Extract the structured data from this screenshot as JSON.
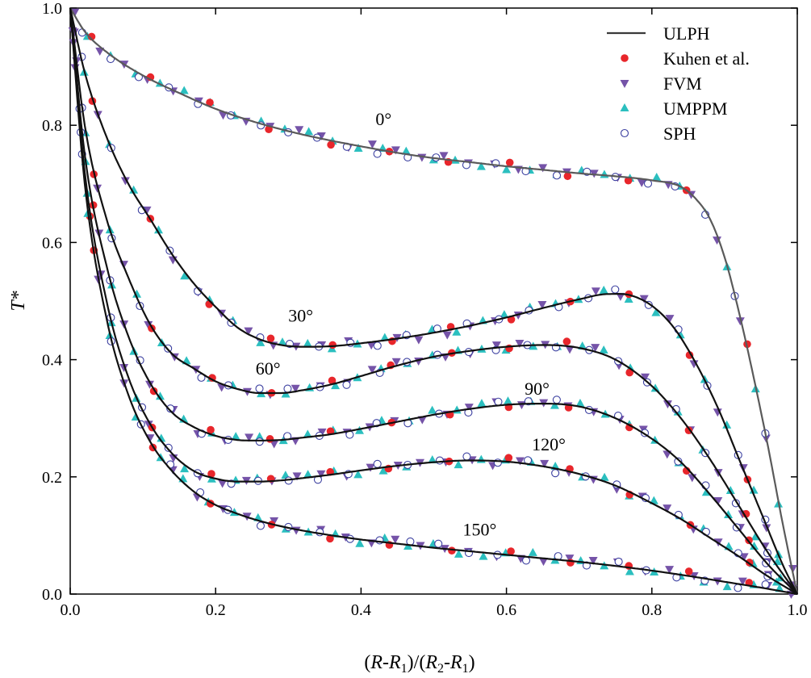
{
  "chart_data": {
    "type": "scatter",
    "title": "",
    "xlabel": "(R-R1)/(R2-R1)",
    "ylabel": "T*",
    "xlim": [
      0.0,
      1.0
    ],
    "ylim": [
      0.0,
      1.0
    ],
    "x_ticks": [
      "0.0",
      "0.2",
      "0.4",
      "0.6",
      "0.8",
      "1.0"
    ],
    "y_ticks": [
      "0.0",
      "0.2",
      "0.4",
      "0.6",
      "0.8",
      "1.0"
    ],
    "grid": false,
    "legend_position": "top-right",
    "colors": {
      "ulph": "#3a3a3a",
      "kuhen": "#e8262b",
      "fvm": "#7553a8",
      "umppm": "#2bbfbf",
      "sph": "#3b3fa0"
    },
    "legend": [
      {
        "key": "ulph",
        "label": "ULPH",
        "marker": "line"
      },
      {
        "key": "kuhen",
        "label": "Kuhen et al.",
        "marker": "circle-filled"
      },
      {
        "key": "fvm",
        "label": "FVM",
        "marker": "triangle-down"
      },
      {
        "key": "umppm",
        "label": "UMPPM",
        "marker": "triangle-up"
      },
      {
        "key": "sph",
        "label": "SPH",
        "marker": "circle-open"
      }
    ],
    "series": [
      {
        "name": "0°",
        "label_at": [
          0.42,
          0.8
        ],
        "x": [
          0.0,
          0.02,
          0.05,
          0.1,
          0.15,
          0.2,
          0.25,
          0.3,
          0.35,
          0.4,
          0.45,
          0.5,
          0.55,
          0.6,
          0.65,
          0.7,
          0.75,
          0.8,
          0.84,
          0.86,
          0.88,
          0.9,
          0.92,
          0.94,
          0.96,
          0.98,
          1.0
        ],
        "y": [
          1.0,
          0.96,
          0.925,
          0.885,
          0.855,
          0.828,
          0.807,
          0.79,
          0.776,
          0.764,
          0.753,
          0.744,
          0.737,
          0.73,
          0.724,
          0.718,
          0.713,
          0.706,
          0.695,
          0.675,
          0.64,
          0.575,
          0.48,
          0.37,
          0.25,
          0.12,
          0.0
        ]
      },
      {
        "name": "30°",
        "label_at": [
          0.3,
          0.465
        ],
        "x": [
          0.0,
          0.02,
          0.05,
          0.08,
          0.11,
          0.14,
          0.17,
          0.2,
          0.23,
          0.26,
          0.29,
          0.32,
          0.36,
          0.4,
          0.45,
          0.5,
          0.55,
          0.6,
          0.65,
          0.7,
          0.74,
          0.77,
          0.8,
          0.83,
          0.86,
          0.89,
          0.92,
          0.95,
          0.98,
          1.0
        ],
        "y": [
          1.0,
          0.89,
          0.78,
          0.7,
          0.64,
          0.58,
          0.53,
          0.49,
          0.455,
          0.435,
          0.425,
          0.422,
          0.423,
          0.428,
          0.436,
          0.446,
          0.458,
          0.472,
          0.488,
          0.503,
          0.512,
          0.51,
          0.492,
          0.455,
          0.395,
          0.32,
          0.23,
          0.14,
          0.05,
          0.0
        ]
      },
      {
        "name": "60°",
        "label_at": [
          0.255,
          0.375
        ],
        "x": [
          0.0,
          0.02,
          0.05,
          0.08,
          0.11,
          0.14,
          0.17,
          0.2,
          0.23,
          0.26,
          0.29,
          0.32,
          0.36,
          0.4,
          0.45,
          0.5,
          0.55,
          0.6,
          0.65,
          0.7,
          0.75,
          0.8,
          0.84,
          0.88,
          0.92,
          0.96,
          1.0
        ],
        "y": [
          1.0,
          0.8,
          0.64,
          0.54,
          0.46,
          0.41,
          0.385,
          0.363,
          0.35,
          0.343,
          0.343,
          0.348,
          0.358,
          0.372,
          0.39,
          0.405,
          0.415,
          0.422,
          0.425,
          0.42,
          0.4,
          0.355,
          0.3,
          0.23,
          0.15,
          0.07,
          0.0
        ]
      },
      {
        "name": "90°",
        "label_at": [
          0.625,
          0.34
        ],
        "x": [
          0.0,
          0.02,
          0.05,
          0.08,
          0.11,
          0.14,
          0.17,
          0.2,
          0.23,
          0.26,
          0.29,
          0.32,
          0.36,
          0.4,
          0.45,
          0.5,
          0.55,
          0.6,
          0.65,
          0.7,
          0.75,
          0.8,
          0.84,
          0.88,
          0.92,
          0.96,
          1.0
        ],
        "y": [
          1.0,
          0.75,
          0.56,
          0.44,
          0.36,
          0.31,
          0.285,
          0.27,
          0.263,
          0.262,
          0.263,
          0.267,
          0.273,
          0.282,
          0.294,
          0.306,
          0.316,
          0.323,
          0.325,
          0.32,
          0.3,
          0.265,
          0.225,
          0.17,
          0.11,
          0.05,
          0.0
        ]
      },
      {
        "name": "120°",
        "label_at": [
          0.635,
          0.245
        ],
        "x": [
          0.0,
          0.02,
          0.05,
          0.08,
          0.11,
          0.14,
          0.17,
          0.2,
          0.23,
          0.26,
          0.29,
          0.32,
          0.36,
          0.4,
          0.45,
          0.5,
          0.55,
          0.6,
          0.65,
          0.7,
          0.75,
          0.8,
          0.84,
          0.88,
          0.92,
          0.96,
          1.0
        ],
        "y": [
          1.0,
          0.72,
          0.5,
          0.37,
          0.29,
          0.24,
          0.21,
          0.197,
          0.192,
          0.192,
          0.194,
          0.198,
          0.204,
          0.211,
          0.219,
          0.225,
          0.228,
          0.226,
          0.218,
          0.205,
          0.185,
          0.155,
          0.128,
          0.096,
          0.064,
          0.03,
          0.0
        ]
      },
      {
        "name": "150°",
        "label_at": [
          0.54,
          0.1
        ],
        "x": [
          0.0,
          0.02,
          0.05,
          0.08,
          0.11,
          0.14,
          0.17,
          0.2,
          0.23,
          0.26,
          0.3,
          0.35,
          0.4,
          0.45,
          0.5,
          0.55,
          0.6,
          0.65,
          0.7,
          0.75,
          0.8,
          0.85,
          0.9,
          0.95,
          1.0
        ],
        "y": [
          1.0,
          0.7,
          0.47,
          0.34,
          0.26,
          0.21,
          0.175,
          0.152,
          0.137,
          0.125,
          0.113,
          0.102,
          0.093,
          0.086,
          0.079,
          0.073,
          0.067,
          0.061,
          0.055,
          0.048,
          0.04,
          0.031,
          0.021,
          0.011,
          0.0
        ]
      }
    ]
  }
}
